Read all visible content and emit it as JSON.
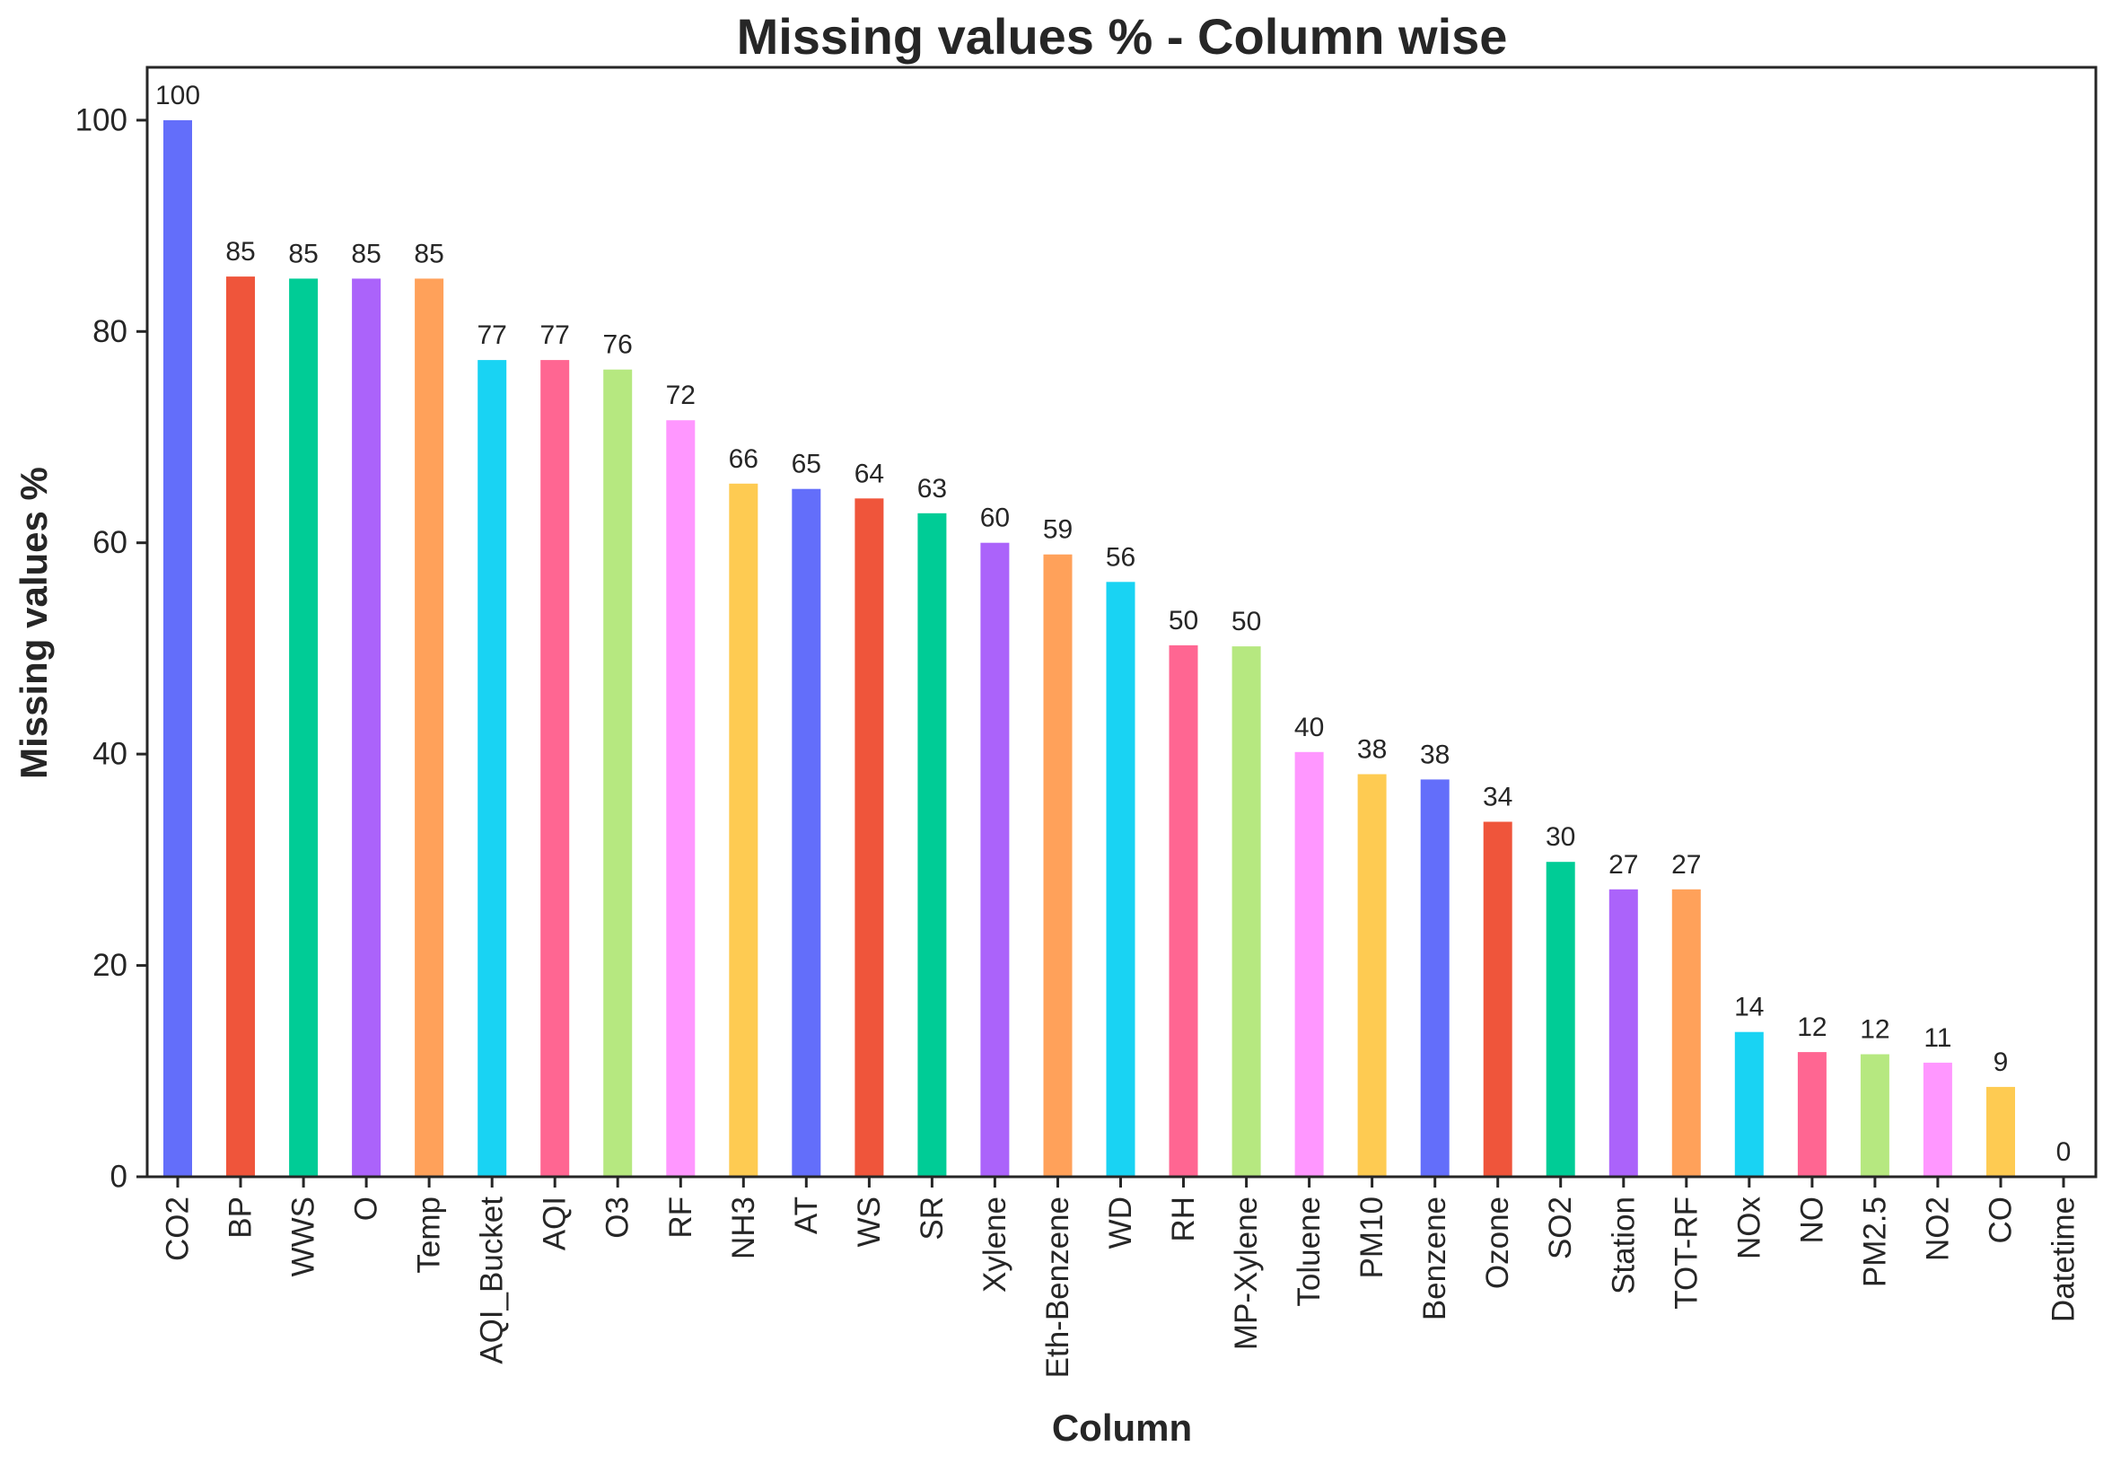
{
  "chart_data": {
    "type": "bar",
    "title": "Missing values % - Column wise",
    "xlabel": "Column",
    "ylabel": "Missing values %",
    "ylim": [
      0,
      105
    ],
    "yticks": [
      0,
      20,
      40,
      60,
      80,
      100
    ],
    "grid": false,
    "categories": [
      "CO2",
      "BP",
      "WWS",
      "O",
      "Temp",
      "AQI_Bucket",
      "AQI",
      "O3",
      "RF",
      "NH3",
      "AT",
      "WS",
      "SR",
      "Xylene",
      "Eth-Benzene",
      "WD",
      "RH",
      "MP-Xylene",
      "Toluene",
      "PM10",
      "Benzene",
      "Ozone",
      "SO2",
      "Station",
      "TOT-RF",
      "NOx",
      "NO",
      "PM2.5",
      "NO2",
      "CO",
      "Datetime"
    ],
    "values": [
      100,
      85.2,
      85,
      85,
      85,
      77.3,
      77.3,
      76.4,
      71.6,
      65.6,
      65.1,
      64.2,
      62.8,
      60,
      58.9,
      56.3,
      50.3,
      50.2,
      40.2,
      38.1,
      37.6,
      33.6,
      29.8,
      27.2,
      27.2,
      13.7,
      11.8,
      11.6,
      10.8,
      8.5,
      0
    ],
    "labels": [
      "100",
      "85",
      "85",
      "85",
      "85",
      "77",
      "77",
      "76",
      "72",
      "66",
      "65",
      "64",
      "63",
      "60",
      "59",
      "56",
      "50",
      "50",
      "40",
      "38",
      "38",
      "34",
      "30",
      "27",
      "27",
      "14",
      "12",
      "12",
      "11",
      "9",
      "0"
    ],
    "colors": [
      "#636efa",
      "#ef553b",
      "#00cc96",
      "#ab63fa",
      "#ffa15a",
      "#19d3f3",
      "#ff6692",
      "#b6e880",
      "#ff97ff",
      "#fecb52"
    ]
  }
}
